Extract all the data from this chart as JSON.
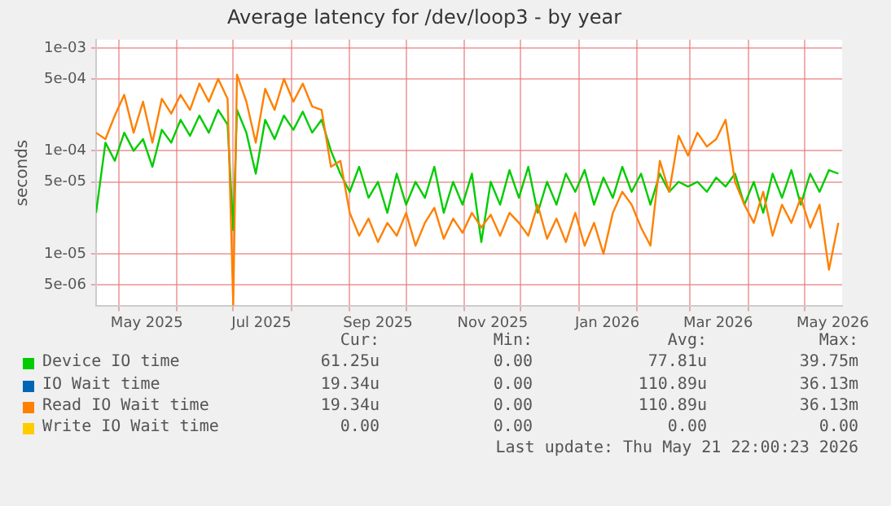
{
  "chart_data": {
    "type": "line",
    "title": "Average latency for /dev/loop3 - by year",
    "ylabel": "seconds",
    "log": "y",
    "grid": true,
    "legend": "bottom",
    "marker": "none",
    "line_style": "solid",
    "xlim": [
      "2025-04-19",
      "2026-05-21"
    ],
    "xticks": [
      {
        "value": "2025-05-01",
        "label": null
      },
      {
        "value": "2025-05-16",
        "label": "May 2025"
      },
      {
        "value": "2025-06-01",
        "label": null
      },
      {
        "value": "2025-07-01",
        "label": null
      },
      {
        "value": "2025-07-16",
        "label": "Jul 2025"
      },
      {
        "value": "2025-08-01",
        "label": null
      },
      {
        "value": "2025-09-01",
        "label": null
      },
      {
        "value": "2025-09-16",
        "label": "Sep 2025"
      },
      {
        "value": "2025-10-01",
        "label": null
      },
      {
        "value": "2025-11-01",
        "label": null
      },
      {
        "value": "2025-11-16",
        "label": "Nov 2025"
      },
      {
        "value": "2025-12-01",
        "label": null
      },
      {
        "value": "2026-01-01",
        "label": null
      },
      {
        "value": "2026-01-16",
        "label": "Jan 2026"
      },
      {
        "value": "2026-02-01",
        "label": null
      },
      {
        "value": "2026-03-01",
        "label": null
      },
      {
        "value": "2026-03-16",
        "label": "Mar 2026"
      },
      {
        "value": "2026-04-01",
        "label": null
      },
      {
        "value": "2026-05-01",
        "label": null
      },
      {
        "value": "2026-05-16",
        "label": "May 2026"
      }
    ],
    "ylim": [
      3.1e-06,
      0.0012
    ],
    "yticks": [
      {
        "value": 5e-06,
        "label": "5e-06"
      },
      {
        "value": 1e-05,
        "label": "1e-05"
      },
      {
        "value": 5e-05,
        "label": "5e-05"
      },
      {
        "value": 0.0001,
        "label": "1e-04"
      },
      {
        "value": 0.0005,
        "label": "5e-04"
      },
      {
        "value": 0.001,
        "label": "1e-03"
      }
    ],
    "x": [
      "2025-04-19",
      "2025-04-24",
      "2025-04-29",
      "2025-05-04",
      "2025-05-09",
      "2025-05-14",
      "2025-05-19",
      "2025-05-24",
      "2025-05-29",
      "2025-06-03",
      "2025-06-08",
      "2025-06-13",
      "2025-06-18",
      "2025-06-23",
      "2025-06-28",
      "2025-07-01",
      "2025-07-03",
      "2025-07-08",
      "2025-07-13",
      "2025-07-18",
      "2025-07-23",
      "2025-07-28",
      "2025-08-02",
      "2025-08-07",
      "2025-08-12",
      "2025-08-17",
      "2025-08-22",
      "2025-08-27",
      "2025-09-01",
      "2025-09-06",
      "2025-09-11",
      "2025-09-16",
      "2025-09-21",
      "2025-09-26",
      "2025-10-01",
      "2025-10-06",
      "2025-10-11",
      "2025-10-16",
      "2025-10-21",
      "2025-10-26",
      "2025-10-31",
      "2025-11-05",
      "2025-11-10",
      "2025-11-15",
      "2025-11-20",
      "2025-11-25",
      "2025-11-30",
      "2025-12-05",
      "2025-12-10",
      "2025-12-15",
      "2025-12-20",
      "2025-12-25",
      "2025-12-30",
      "2026-01-04",
      "2026-01-09",
      "2026-01-14",
      "2026-01-19",
      "2026-01-24",
      "2026-01-29",
      "2026-02-03",
      "2026-02-08",
      "2026-02-13",
      "2026-02-18",
      "2026-02-23",
      "2026-02-28",
      "2026-03-05",
      "2026-03-10",
      "2026-03-15",
      "2026-03-20",
      "2026-03-25",
      "2026-03-30",
      "2026-04-04",
      "2026-04-09",
      "2026-04-14",
      "2026-04-19",
      "2026-04-24",
      "2026-04-29",
      "2026-05-04",
      "2026-05-09",
      "2026-05-14",
      "2026-05-19"
    ],
    "series": [
      {
        "name": "Device IO time",
        "color": "#00cc00",
        "values": [
          2.5e-05,
          0.00012,
          8e-05,
          0.00015,
          0.0001,
          0.00013,
          7e-05,
          0.00016,
          0.00012,
          0.0002,
          0.00014,
          0.00022,
          0.00015,
          0.00025,
          0.00018,
          1.7e-05,
          0.00025,
          0.00015,
          6e-05,
          0.0002,
          0.00013,
          0.00022,
          0.00016,
          0.00024,
          0.00015,
          0.0002,
          0.0001,
          6e-05,
          4e-05,
          7e-05,
          3.5e-05,
          5e-05,
          2.5e-05,
          6e-05,
          3e-05,
          5e-05,
          3.5e-05,
          7e-05,
          2.5e-05,
          5e-05,
          3e-05,
          6e-05,
          1.3e-05,
          5e-05,
          3e-05,
          6.5e-05,
          3.5e-05,
          7e-05,
          2.5e-05,
          5e-05,
          3e-05,
          6e-05,
          4e-05,
          6.5e-05,
          3e-05,
          5.5e-05,
          3.5e-05,
          7e-05,
          4e-05,
          6e-05,
          3e-05,
          6e-05,
          4e-05,
          5e-05,
          4.5e-05,
          5e-05,
          4e-05,
          5.5e-05,
          4.5e-05,
          6e-05,
          3e-05,
          5e-05,
          2.5e-05,
          6e-05,
          3.5e-05,
          6.5e-05,
          3e-05,
          6e-05,
          4e-05,
          6.5e-05,
          6e-05
        ]
      },
      {
        "name": "IO Wait time",
        "color": "#0066b3",
        "values": [
          null,
          null,
          null,
          null,
          null,
          null,
          null,
          null,
          null,
          null,
          null,
          null,
          null,
          null,
          null,
          null,
          null,
          null,
          null,
          null,
          null,
          null,
          null,
          null,
          null,
          null,
          null,
          null,
          null,
          null,
          null,
          null,
          null,
          null,
          null,
          null,
          null,
          null,
          null,
          null,
          null,
          null,
          null,
          null,
          null,
          null,
          null,
          null,
          null,
          null,
          null,
          null,
          null,
          null,
          null,
          null,
          null,
          null,
          null,
          null,
          null,
          null,
          null,
          null,
          null,
          null,
          null,
          null,
          null,
          null,
          null,
          null,
          null,
          null,
          null,
          null,
          null,
          null,
          null,
          null,
          null
        ]
      },
      {
        "name": "Read IO Wait time",
        "color": "#ff8000",
        "values": [
          0.00015,
          0.00013,
          0.00022,
          0.00035,
          0.00015,
          0.0003,
          0.00012,
          0.00032,
          0.00023,
          0.00035,
          0.00025,
          0.00045,
          0.0003,
          0.0005,
          0.00032,
          3.2e-06,
          0.00055,
          0.0003,
          0.00012,
          0.0004,
          0.00025,
          0.0005,
          0.0003,
          0.00045,
          0.00027,
          0.00025,
          7e-05,
          8e-05,
          2.5e-05,
          1.5e-05,
          2.2e-05,
          1.3e-05,
          2e-05,
          1.5e-05,
          2.5e-05,
          1.2e-05,
          2e-05,
          2.8e-05,
          1.4e-05,
          2.2e-05,
          1.6e-05,
          2.5e-05,
          1.8e-05,
          2.4e-05,
          1.5e-05,
          2.5e-05,
          2e-05,
          1.5e-05,
          3e-05,
          1.4e-05,
          2.2e-05,
          1.3e-05,
          2.5e-05,
          1.2e-05,
          2e-05,
          1e-05,
          2.5e-05,
          4e-05,
          3e-05,
          1.8e-05,
          1.2e-05,
          8e-05,
          4e-05,
          0.00014,
          9e-05,
          0.00015,
          0.00011,
          0.00013,
          0.0002,
          5e-05,
          3e-05,
          2e-05,
          4e-05,
          1.5e-05,
          3e-05,
          2e-05,
          3.5e-05,
          1.8e-05,
          3e-05,
          7e-06,
          2e-05
        ]
      },
      {
        "name": "Write IO Wait time",
        "color": "#ffcc00",
        "values": [
          null,
          null,
          null,
          null,
          null,
          null,
          null,
          null,
          null,
          null,
          null,
          null,
          null,
          null,
          null,
          null,
          null,
          null,
          null,
          null,
          null,
          null,
          null,
          null,
          null,
          null,
          null,
          null,
          null,
          null,
          null,
          null,
          null,
          null,
          null,
          null,
          null,
          null,
          null,
          null,
          null,
          null,
          null,
          null,
          null,
          null,
          null,
          null,
          null,
          null,
          null,
          null,
          null,
          null,
          null,
          null,
          null,
          null,
          null,
          null,
          null,
          null,
          null,
          null,
          null,
          null,
          null,
          null,
          null,
          null,
          null,
          null,
          null,
          null,
          null,
          null,
          null,
          null,
          null,
          null,
          null
        ]
      }
    ],
    "annotations": [
      "Cur:",
      "Min:",
      "Avg:",
      "Max:",
      "61.25u",
      "0.00",
      "77.81u",
      "39.75m",
      "19.34u",
      "0.00",
      "110.89u",
      "36.13m",
      "19.34u",
      "0.00",
      "110.89u",
      "36.13m",
      "0.00",
      "0.00",
      "0.00",
      "0.00",
      "Last update: Thu May 21 22:00:23 2026"
    ]
  }
}
